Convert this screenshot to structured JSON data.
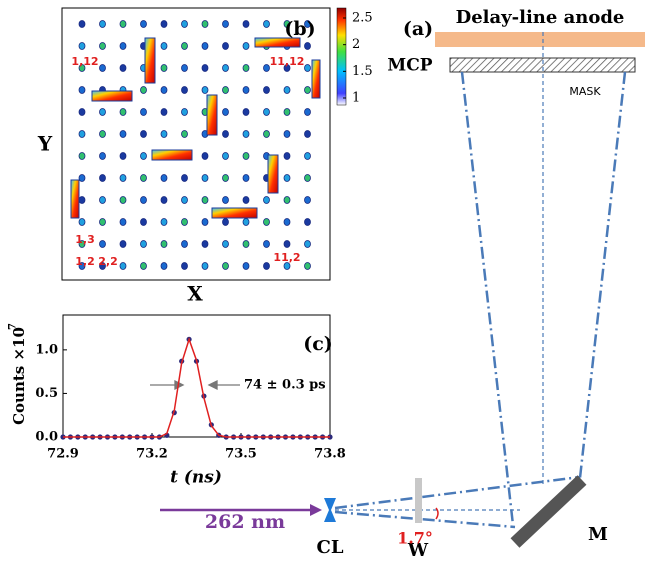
{
  "chart_data": {
    "type": "line",
    "title": "(c)",
    "xlabel": "t (ns)",
    "ylabel": "Counts ×10",
    "ylabel_exponent": "7",
    "annotation": "74 ± 0.3 ps",
    "x": [
      72.9,
      72.925,
      72.95,
      72.975,
      73.0,
      73.025,
      73.05,
      73.075,
      73.1,
      73.125,
      73.15,
      73.175,
      73.2,
      73.225,
      73.25,
      73.275,
      73.3,
      73.325,
      73.35,
      73.375,
      73.4,
      73.425,
      73.45,
      73.475,
      73.5,
      73.525,
      73.55,
      73.575,
      73.6,
      73.625,
      73.65,
      73.675,
      73.7,
      73.725,
      73.75,
      73.775,
      73.8
    ],
    "series": [
      {
        "color": "#2d2a7a",
        "style": "markers",
        "values": [
          0,
          0,
          0,
          0,
          0,
          0,
          0,
          0,
          0,
          0,
          0,
          0,
          0,
          0,
          0.02,
          0.28,
          0.87,
          1.12,
          0.87,
          0.47,
          0.14,
          0.02,
          0,
          0,
          0,
          0,
          0,
          0,
          0,
          0,
          0,
          0,
          0,
          0,
          0,
          0,
          0
        ]
      },
      {
        "color": "#e02020",
        "style": "line",
        "values": [
          0,
          0,
          0,
          0,
          0,
          0,
          0,
          0,
          0,
          0,
          0,
          0,
          0,
          0,
          0.04,
          0.3,
          0.85,
          1.12,
          0.88,
          0.45,
          0.13,
          0.02,
          0,
          0,
          0,
          0,
          0,
          0,
          0,
          0,
          0,
          0,
          0,
          0,
          0,
          0,
          0
        ]
      }
    ],
    "xlim": [
      72.9,
      73.8
    ],
    "xticks": [
      72.9,
      73.2,
      73.5,
      73.8
    ],
    "ylim": [
      0,
      1.4
    ],
    "yticks": [
      {
        "value": 0,
        "label": "0.0"
      },
      {
        "value": 0.5,
        "label": "0.5"
      },
      {
        "value": 1,
        "label": "1.0"
      }
    ]
  },
  "panel_b": {
    "label": "(b)",
    "xlabel": "X",
    "ylabel": "Y",
    "spot_labels": [
      "1,12",
      "11,12",
      "1,3",
      "1,2",
      "2,2",
      "11,2"
    ],
    "colorbar_ticks": [
      1,
      1.5,
      2,
      2.5
    ]
  },
  "panel_a": {
    "label": "(a)",
    "anode": "Delay-line anode",
    "mcp": "MCP",
    "mask": "MASK",
    "wavelength": "262 nm",
    "lens": "CL",
    "window": "W",
    "mirror": "M",
    "angle": "1.7°"
  }
}
